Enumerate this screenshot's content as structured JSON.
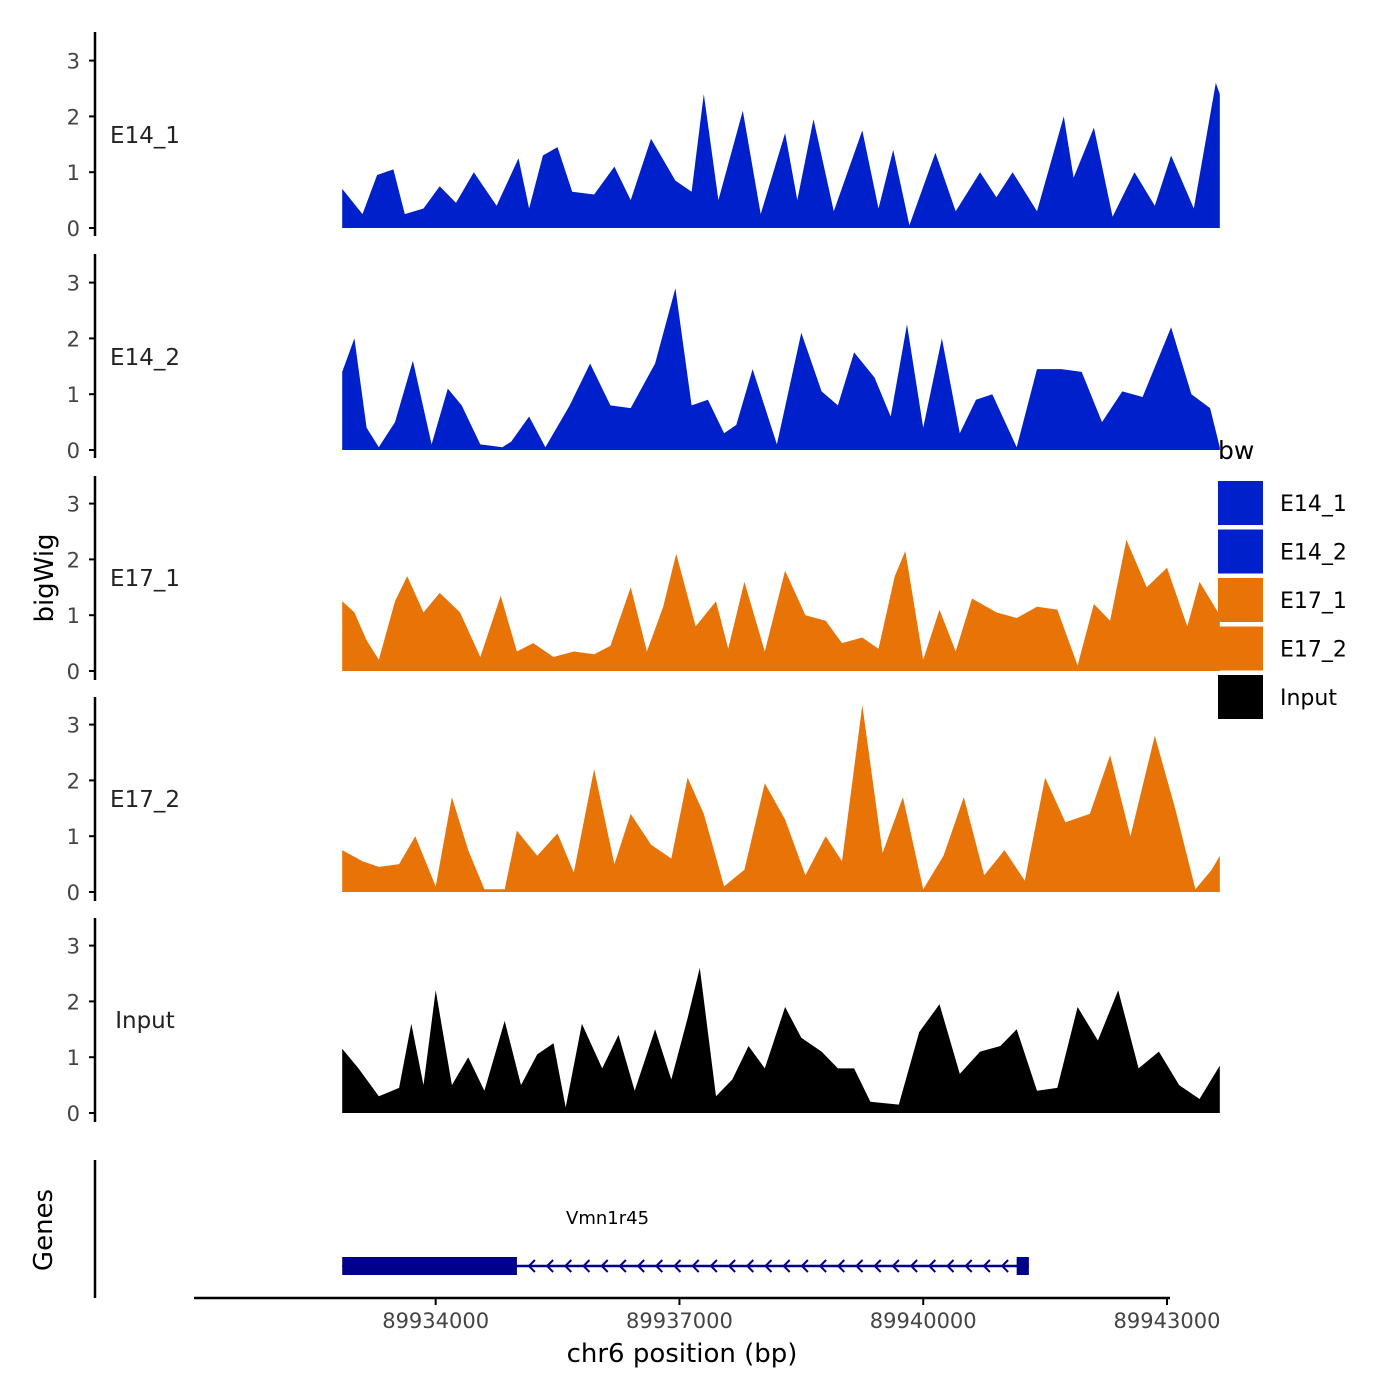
{
  "chart_data": {
    "type": "area",
    "layout": "stacked coverage tracks with gene annotation",
    "ylabel": "bigWig",
    "xlabel": "chr6 position (bp)",
    "xlim": [
      89931100,
      89943000
    ],
    "ylim": [
      0,
      3.5
    ],
    "y_ticks": [
      0,
      1,
      2,
      3
    ],
    "x_ticks": [
      89934000,
      89937000,
      89940000,
      89943000
    ],
    "x_tick_labels": [
      "89934000",
      "89937000",
      "89940000",
      "89943000"
    ],
    "legend": {
      "title": "bw",
      "position": "right",
      "entries": [
        {
          "label": "E14_1",
          "color": "#0020CC"
        },
        {
          "label": "E14_2",
          "color": "#0020CC"
        },
        {
          "label": "E17_1",
          "color": "#E87408"
        },
        {
          "label": "E17_2",
          "color": "#E87408"
        },
        {
          "label": "Input",
          "color": "#000000"
        }
      ]
    },
    "series": [
      {
        "name": "E14_1",
        "label": "E14_1",
        "color": "#0020CC",
        "x_start": 89932850,
        "x_end": 89943650,
        "points": [
          [
            89932850,
            0.7
          ],
          [
            89933100,
            0.25
          ],
          [
            89933280,
            0.95
          ],
          [
            89933480,
            1.05
          ],
          [
            89933620,
            0.25
          ],
          [
            89933850,
            0.35
          ],
          [
            89934050,
            0.75
          ],
          [
            89934250,
            0.45
          ],
          [
            89934470,
            1.0
          ],
          [
            89934750,
            0.4
          ],
          [
            89935020,
            1.25
          ],
          [
            89935150,
            0.35
          ],
          [
            89935320,
            1.3
          ],
          [
            89935500,
            1.45
          ],
          [
            89935680,
            0.65
          ],
          [
            89935950,
            0.6
          ],
          [
            89936200,
            1.1
          ],
          [
            89936400,
            0.5
          ],
          [
            89936650,
            1.6
          ],
          [
            89936950,
            0.85
          ],
          [
            89937150,
            0.65
          ],
          [
            89937300,
            2.4
          ],
          [
            89937480,
            0.5
          ],
          [
            89937780,
            2.1
          ],
          [
            89938000,
            0.25
          ],
          [
            89938300,
            1.7
          ],
          [
            89938450,
            0.5
          ],
          [
            89938650,
            1.95
          ],
          [
            89938900,
            0.3
          ],
          [
            89939250,
            1.75
          ],
          [
            89939450,
            0.35
          ],
          [
            89939630,
            1.4
          ],
          [
            89939830,
            0.05
          ],
          [
            89940150,
            1.35
          ],
          [
            89940400,
            0.3
          ],
          [
            89940700,
            1.0
          ],
          [
            89940900,
            0.55
          ],
          [
            89941100,
            1.0
          ],
          [
            89941400,
            0.3
          ],
          [
            89941730,
            2.0
          ],
          [
            89941850,
            0.9
          ],
          [
            89942100,
            1.8
          ],
          [
            89942330,
            0.2
          ],
          [
            89942600,
            1.0
          ],
          [
            89942850,
            0.4
          ],
          [
            89943050,
            1.3
          ],
          [
            89943330,
            0.35
          ],
          [
            89943600,
            2.6
          ],
          [
            89943650,
            2.4
          ]
        ]
      },
      {
        "name": "E14_2",
        "label": "E14_2",
        "color": "#0020CC",
        "x_start": 89932850,
        "x_end": 89943650,
        "points": [
          [
            89932850,
            1.4
          ],
          [
            89933000,
            2.0
          ],
          [
            89933150,
            0.4
          ],
          [
            89933300,
            0.05
          ],
          [
            89933500,
            0.5
          ],
          [
            89933720,
            1.6
          ],
          [
            89933950,
            0.1
          ],
          [
            89934150,
            1.1
          ],
          [
            89934320,
            0.8
          ],
          [
            89934550,
            0.1
          ],
          [
            89934820,
            0.05
          ],
          [
            89934930,
            0.15
          ],
          [
            89935150,
            0.6
          ],
          [
            89935350,
            0.05
          ],
          [
            89935650,
            0.8
          ],
          [
            89935900,
            1.55
          ],
          [
            89936150,
            0.8
          ],
          [
            89936400,
            0.75
          ],
          [
            89936700,
            1.55
          ],
          [
            89936950,
            2.9
          ],
          [
            89937150,
            0.8
          ],
          [
            89937350,
            0.9
          ],
          [
            89937550,
            0.3
          ],
          [
            89937700,
            0.45
          ],
          [
            89937900,
            1.45
          ],
          [
            89938200,
            0.1
          ],
          [
            89938500,
            2.1
          ],
          [
            89938750,
            1.05
          ],
          [
            89938950,
            0.8
          ],
          [
            89939150,
            1.75
          ],
          [
            89939400,
            1.3
          ],
          [
            89939600,
            0.6
          ],
          [
            89939800,
            2.25
          ],
          [
            89940000,
            0.4
          ],
          [
            89940230,
            2.0
          ],
          [
            89940450,
            0.3
          ],
          [
            89940650,
            0.9
          ],
          [
            89940850,
            1.0
          ],
          [
            89941150,
            0.05
          ],
          [
            89941400,
            1.45
          ],
          [
            89941700,
            1.45
          ],
          [
            89941950,
            1.4
          ],
          [
            89942200,
            0.5
          ],
          [
            89942450,
            1.05
          ],
          [
            89942700,
            0.95
          ],
          [
            89943050,
            2.2
          ],
          [
            89943300,
            1.0
          ],
          [
            89943530,
            0.75
          ],
          [
            89943650,
            0.05
          ]
        ]
      },
      {
        "name": "E17_1",
        "label": "E17_1",
        "color": "#E87408",
        "x_start": 89932850,
        "x_end": 89943650,
        "points": [
          [
            89932850,
            1.25
          ],
          [
            89933000,
            1.05
          ],
          [
            89933150,
            0.55
          ],
          [
            89933300,
            0.2
          ],
          [
            89933500,
            1.25
          ],
          [
            89933650,
            1.7
          ],
          [
            89933850,
            1.05
          ],
          [
            89934050,
            1.4
          ],
          [
            89934300,
            1.05
          ],
          [
            89934550,
            0.25
          ],
          [
            89934800,
            1.35
          ],
          [
            89935000,
            0.35
          ],
          [
            89935200,
            0.5
          ],
          [
            89935450,
            0.25
          ],
          [
            89935700,
            0.35
          ],
          [
            89935950,
            0.3
          ],
          [
            89936150,
            0.45
          ],
          [
            89936400,
            1.5
          ],
          [
            89936600,
            0.35
          ],
          [
            89936800,
            1.15
          ],
          [
            89936960,
            2.1
          ],
          [
            89937200,
            0.8
          ],
          [
            89937450,
            1.25
          ],
          [
            89937600,
            0.4
          ],
          [
            89937800,
            1.6
          ],
          [
            89938050,
            0.35
          ],
          [
            89938300,
            1.8
          ],
          [
            89938550,
            1.0
          ],
          [
            89938800,
            0.9
          ],
          [
            89939000,
            0.5
          ],
          [
            89939250,
            0.6
          ],
          [
            89939450,
            0.4
          ],
          [
            89939650,
            1.7
          ],
          [
            89939780,
            2.15
          ],
          [
            89940000,
            0.2
          ],
          [
            89940200,
            1.1
          ],
          [
            89940400,
            0.35
          ],
          [
            89940600,
            1.3
          ],
          [
            89940900,
            1.05
          ],
          [
            89941150,
            0.95
          ],
          [
            89941400,
            1.15
          ],
          [
            89941650,
            1.1
          ],
          [
            89941900,
            0.1
          ],
          [
            89942100,
            1.2
          ],
          [
            89942300,
            0.9
          ],
          [
            89942500,
            2.35
          ],
          [
            89942750,
            1.5
          ],
          [
            89943000,
            1.85
          ],
          [
            89943250,
            0.8
          ],
          [
            89943400,
            1.6
          ],
          [
            89943650,
            1.0
          ]
        ]
      },
      {
        "name": "E17_2",
        "label": "E17_2",
        "color": "#E87408",
        "x_start": 89932850,
        "x_end": 89943650,
        "points": [
          [
            89932850,
            0.75
          ],
          [
            89933100,
            0.55
          ],
          [
            89933300,
            0.45
          ],
          [
            89933550,
            0.5
          ],
          [
            89933750,
            1.0
          ],
          [
            89934000,
            0.1
          ],
          [
            89934200,
            1.7
          ],
          [
            89934400,
            0.75
          ],
          [
            89934600,
            0.05
          ],
          [
            89934850,
            0.05
          ],
          [
            89935000,
            1.1
          ],
          [
            89935250,
            0.65
          ],
          [
            89935500,
            1.05
          ],
          [
            89935700,
            0.35
          ],
          [
            89935950,
            2.2
          ],
          [
            89936200,
            0.5
          ],
          [
            89936400,
            1.4
          ],
          [
            89936650,
            0.85
          ],
          [
            89936900,
            0.6
          ],
          [
            89937100,
            2.05
          ],
          [
            89937300,
            1.4
          ],
          [
            89937550,
            0.1
          ],
          [
            89937800,
            0.4
          ],
          [
            89938050,
            1.95
          ],
          [
            89938300,
            1.3
          ],
          [
            89938550,
            0.3
          ],
          [
            89938800,
            1.0
          ],
          [
            89939000,
            0.55
          ],
          [
            89939250,
            3.35
          ],
          [
            89939500,
            0.7
          ],
          [
            89939750,
            1.7
          ],
          [
            89940000,
            0.05
          ],
          [
            89940250,
            0.65
          ],
          [
            89940500,
            1.7
          ],
          [
            89940750,
            0.3
          ],
          [
            89941000,
            0.75
          ],
          [
            89941250,
            0.2
          ],
          [
            89941500,
            2.05
          ],
          [
            89941750,
            1.25
          ],
          [
            89942050,
            1.4
          ],
          [
            89942300,
            2.45
          ],
          [
            89942550,
            1.0
          ],
          [
            89942850,
            2.8
          ],
          [
            89943100,
            1.5
          ],
          [
            89943350,
            0.05
          ],
          [
            89943550,
            0.4
          ],
          [
            89943650,
            0.65
          ]
        ]
      },
      {
        "name": "Input",
        "label": "Input",
        "color": "#000000",
        "x_start": 89932850,
        "x_end": 89943650,
        "points": [
          [
            89932850,
            1.15
          ],
          [
            89933050,
            0.8
          ],
          [
            89933300,
            0.3
          ],
          [
            89933550,
            0.45
          ],
          [
            89933700,
            1.6
          ],
          [
            89933850,
            0.5
          ],
          [
            89934000,
            2.2
          ],
          [
            89934200,
            0.5
          ],
          [
            89934400,
            1.0
          ],
          [
            89934600,
            0.4
          ],
          [
            89934850,
            1.65
          ],
          [
            89935050,
            0.5
          ],
          [
            89935250,
            1.05
          ],
          [
            89935450,
            1.25
          ],
          [
            89935600,
            0.1
          ],
          [
            89935800,
            1.6
          ],
          [
            89936050,
            0.8
          ],
          [
            89936250,
            1.4
          ],
          [
            89936450,
            0.4
          ],
          [
            89936700,
            1.5
          ],
          [
            89936900,
            0.6
          ],
          [
            89937100,
            1.7
          ],
          [
            89937250,
            2.6
          ],
          [
            89937450,
            0.3
          ],
          [
            89937650,
            0.6
          ],
          [
            89937850,
            1.2
          ],
          [
            89938050,
            0.8
          ],
          [
            89938300,
            1.9
          ],
          [
            89938500,
            1.35
          ],
          [
            89938750,
            1.1
          ],
          [
            89938950,
            0.8
          ],
          [
            89939150,
            0.8
          ],
          [
            89939350,
            0.2
          ],
          [
            89939700,
            0.15
          ],
          [
            89939950,
            1.45
          ],
          [
            89940200,
            1.95
          ],
          [
            89940450,
            0.7
          ],
          [
            89940700,
            1.1
          ],
          [
            89940950,
            1.2
          ],
          [
            89941150,
            1.5
          ],
          [
            89941400,
            0.4
          ],
          [
            89941650,
            0.45
          ],
          [
            89941900,
            1.9
          ],
          [
            89942150,
            1.3
          ],
          [
            89942400,
            2.2
          ],
          [
            89942650,
            0.8
          ],
          [
            89942900,
            1.1
          ],
          [
            89943150,
            0.5
          ],
          [
            89943400,
            0.25
          ],
          [
            89943650,
            0.85
          ]
        ]
      }
    ],
    "genes_track": {
      "label": "Genes",
      "genes": [
        {
          "name": "Vmn1r45",
          "color": "#00008B",
          "strand": "-",
          "start": 89932850,
          "end": 89941300,
          "thick_start": 89932850,
          "thick_end": 89935000,
          "exon2_start": 89941150,
          "exon2_end": 89941300
        }
      ]
    }
  }
}
